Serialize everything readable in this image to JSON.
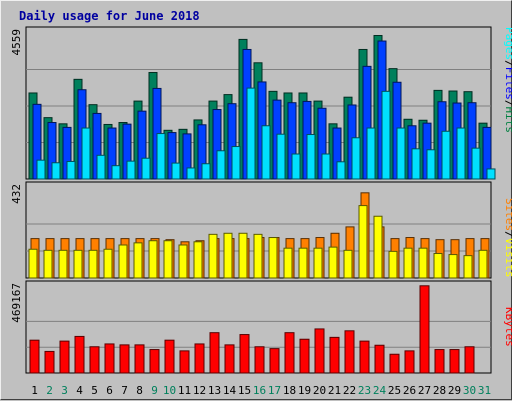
{
  "chart_data": {
    "type": "bar",
    "title": "Daily usage for June 2018",
    "categories": [
      "1",
      "2",
      "3",
      "4",
      "5",
      "6",
      "7",
      "8",
      "9",
      "10",
      "11",
      "12",
      "13",
      "14",
      "15",
      "16",
      "17",
      "18",
      "19",
      "20",
      "21",
      "22",
      "23",
      "24",
      "25",
      "26",
      "27",
      "28",
      "29",
      "30",
      "31"
    ],
    "weekend_days": [
      "2",
      "3",
      "9",
      "10",
      "16",
      "17",
      "23",
      "24",
      "30",
      "31"
    ],
    "right_labels": {
      "top": [
        {
          "text": "Pages",
          "color": "#00ffff"
        },
        {
          "text": "/",
          "color": "#000000"
        },
        {
          "text": "Files",
          "color": "#0000ff"
        },
        {
          "text": "/",
          "color": "#000000"
        },
        {
          "text": "Hits",
          "color": "#008040"
        }
      ],
      "mid": [
        {
          "text": "Sites",
          "color": "#ff8000"
        },
        {
          "text": "/",
          "color": "#000000"
        },
        {
          "text": "Visits",
          "color": "#ffff00"
        }
      ],
      "bot": [
        {
          "text": "KBytes",
          "color": "#ff0000"
        }
      ]
    },
    "panels": [
      {
        "name": "hits-files-pages",
        "ymax": 4559,
        "ymax_label": "4559",
        "series": [
          {
            "name": "Hits",
            "color": "#00805c",
            "values": [
              2650,
              1890,
              1700,
              3070,
              2290,
              1680,
              1740,
              2400,
              3280,
              1500,
              1530,
              1820,
              2400,
              2600,
              4300,
              3580,
              2700,
              2650,
              2650,
              2400,
              1700,
              2520,
              3990,
              4420,
              3400,
              1840,
              1810,
              2730,
              2710,
              2690,
              1720
            ]
          },
          {
            "name": "Files",
            "color": "#0040ff",
            "values": [
              2300,
              1740,
              1590,
              2750,
              2020,
              1570,
              1690,
              2090,
              2790,
              1430,
              1390,
              1670,
              2140,
              2320,
              3990,
              2990,
              2430,
              2350,
              2390,
              2180,
              1570,
              2280,
              3470,
              4250,
              2980,
              1640,
              1720,
              2380,
              2340,
              2350,
              1590
            ]
          },
          {
            "name": "Pages",
            "color": "#00e0ff",
            "values": [
              580,
              500,
              540,
              1570,
              730,
              410,
              550,
              640,
              1400,
              490,
              340,
              470,
              870,
              1000,
              2800,
              1640,
              1380,
              770,
              1370,
              770,
              530,
              1270,
              1570,
              2700,
              1570,
              930,
              900,
              1470,
              1570,
              950,
              310
            ]
          }
        ]
      },
      {
        "name": "sites-visits",
        "ymax": 432,
        "ymax_label": "432",
        "series": [
          {
            "name": "Sites",
            "color": "#ff8000",
            "values": [
              185,
              185,
              185,
              185,
              185,
              185,
              185,
              185,
              185,
              180,
              170,
              175,
              185,
              185,
              185,
              190,
              190,
              185,
              185,
              190,
              210,
              240,
              400,
              240,
              185,
              190,
              185,
              180,
              180,
              185,
              185
            ]
          },
          {
            "name": "Visits",
            "color": "#ffff00",
            "values": [
              135,
              130,
              130,
              130,
              130,
              135,
              155,
              165,
              175,
              175,
              155,
              170,
              205,
              210,
              210,
              205,
              190,
              140,
              140,
              140,
              145,
              130,
              340,
              290,
              125,
              140,
              140,
              115,
              110,
              105,
              130
            ]
          }
        ]
      },
      {
        "name": "kbytes",
        "ymax": 469167,
        "ymax_label": "469167",
        "series": [
          {
            "name": "KBytes",
            "color": "#ff0000",
            "values": [
              175000,
              115000,
              170000,
              195000,
              140000,
              155000,
              150000,
              150000,
              125000,
              175000,
              118000,
              155000,
              215000,
              150000,
              205000,
              140000,
              130000,
              215000,
              180000,
              235000,
              190000,
              225000,
              170000,
              148000,
              100000,
              118000,
              465000,
              125000,
              125000,
              140000,
              0
            ]
          }
        ]
      }
    ]
  }
}
